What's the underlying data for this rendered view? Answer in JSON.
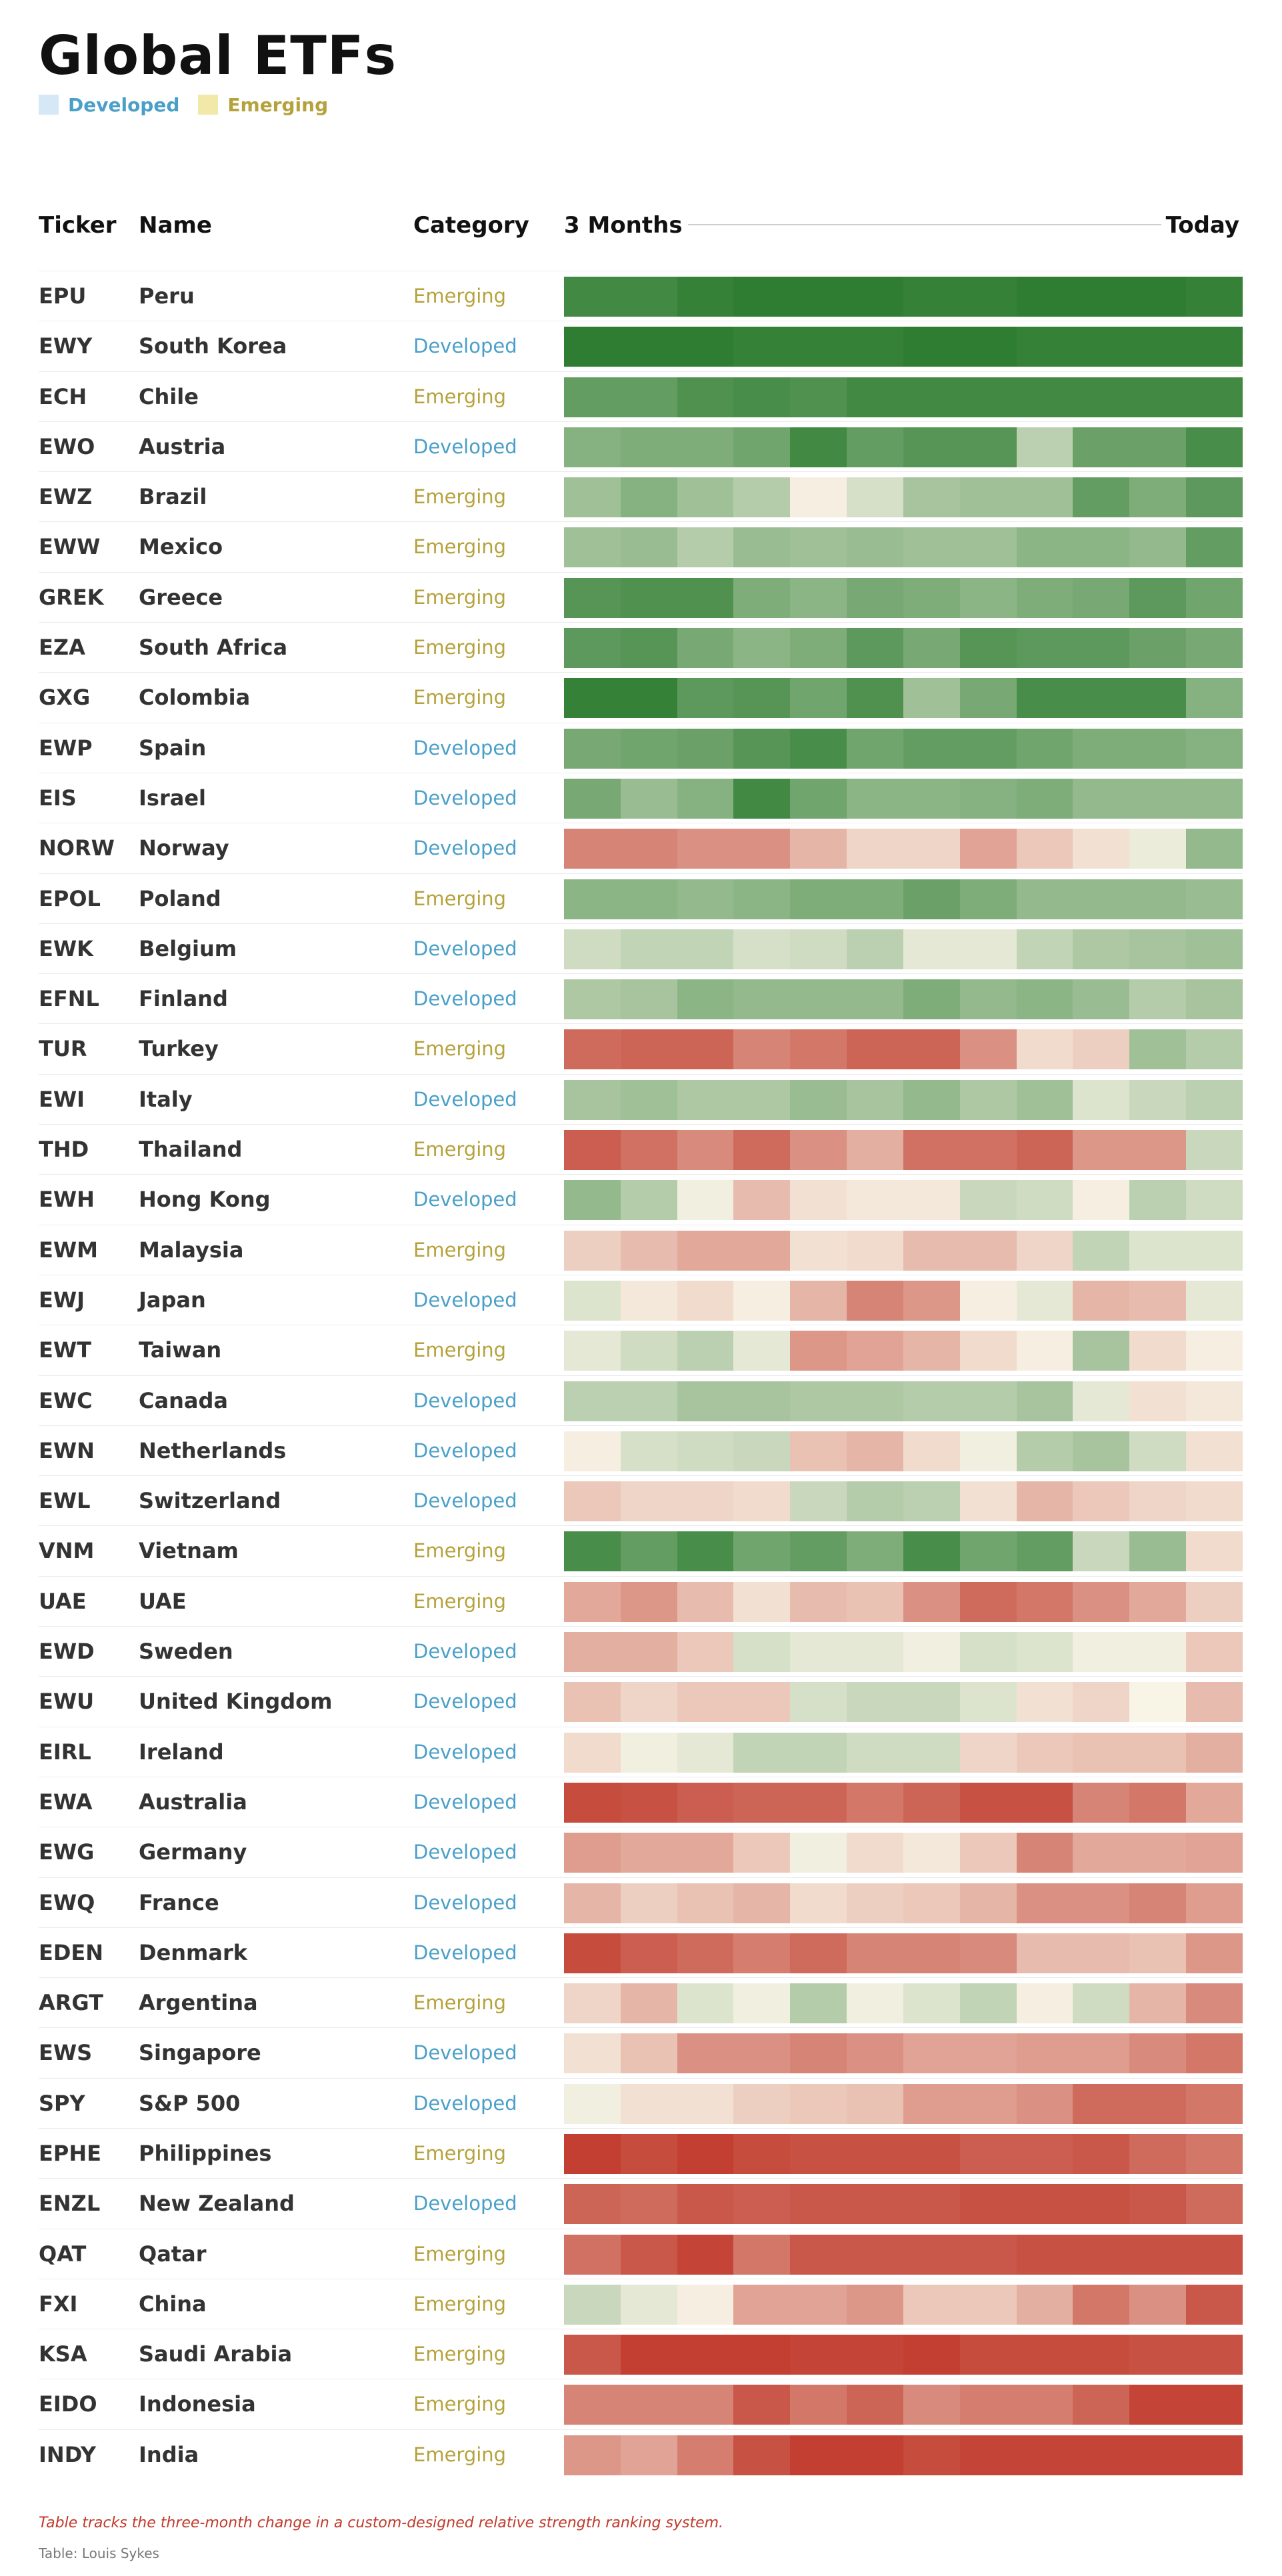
{
  "title": "Global ETFs",
  "legend": [
    {
      "label": "Developed",
      "color": "#4a9fc8",
      "swatch": "#d6e8f6"
    },
    {
      "label": "Emerging",
      "color": "#b5a23c",
      "swatch": "#f2e9a9"
    }
  ],
  "columns": {
    "ticker": "Ticker",
    "name": "Name",
    "category": "Category",
    "start": "3 Months",
    "end": "Today"
  },
  "category_colors": {
    "Developed": "#4a9fc8",
    "Emerging": "#b5a23c"
  },
  "chart_data": {
    "type": "heatmap",
    "title": "Global ETFs",
    "xlabel_start": "3 Months",
    "xlabel_end": "Today",
    "scale": {
      "min": -3,
      "max": 3,
      "negative_color": "#c0392b",
      "neutral_color": "#f8f4e6",
      "positive_color": "#2e7d32"
    },
    "rows": [
      {
        "ticker": "EPU",
        "name": "Peru",
        "category": "Emerging",
        "values": [
          2.7,
          2.7,
          2.9,
          3.0,
          3.0,
          3.0,
          2.9,
          2.9,
          3.0,
          3.0,
          3.0,
          2.9
        ]
      },
      {
        "ticker": "EWY",
        "name": "South Korea",
        "category": "Developed",
        "values": [
          3.0,
          3.0,
          3.0,
          2.9,
          2.9,
          2.9,
          3.0,
          3.0,
          2.9,
          2.9,
          2.9,
          2.9
        ]
      },
      {
        "ticker": "ECH",
        "name": "Chile",
        "category": "Emerging",
        "values": [
          2.2,
          2.2,
          2.5,
          2.6,
          2.5,
          2.7,
          2.7,
          2.7,
          2.7,
          2.7,
          2.7,
          2.7
        ]
      },
      {
        "ticker": "EWO",
        "name": "Austria",
        "category": "Developed",
        "values": [
          1.7,
          1.8,
          1.8,
          2.0,
          2.7,
          2.2,
          2.4,
          2.4,
          0.9,
          2.1,
          2.1,
          2.6
        ]
      },
      {
        "ticker": "EWZ",
        "name": "Brazil",
        "category": "Emerging",
        "values": [
          1.3,
          1.7,
          1.3,
          1.0,
          -0.1,
          0.5,
          1.2,
          1.3,
          1.3,
          2.2,
          1.8,
          2.3
        ]
      },
      {
        "ticker": "EWW",
        "name": "Mexico",
        "category": "Emerging",
        "values": [
          1.3,
          1.4,
          1.0,
          1.4,
          1.3,
          1.4,
          1.3,
          1.3,
          1.6,
          1.6,
          1.5,
          2.2
        ]
      },
      {
        "ticker": "GREK",
        "name": "Greece",
        "category": "Emerging",
        "values": [
          2.4,
          2.5,
          2.5,
          1.8,
          1.6,
          1.9,
          1.8,
          1.6,
          1.8,
          1.9,
          2.3,
          2.0
        ]
      },
      {
        "ticker": "EZA",
        "name": "South Africa",
        "category": "Emerging",
        "values": [
          2.3,
          2.4,
          1.9,
          1.6,
          1.8,
          2.3,
          1.9,
          2.4,
          2.3,
          2.3,
          2.1,
          1.9
        ]
      },
      {
        "ticker": "GXG",
        "name": "Colombia",
        "category": "Emerging",
        "values": [
          2.9,
          2.9,
          2.3,
          2.4,
          2.0,
          2.5,
          1.3,
          1.9,
          2.6,
          2.6,
          2.6,
          1.7
        ]
      },
      {
        "ticker": "EWP",
        "name": "Spain",
        "category": "Developed",
        "values": [
          1.9,
          2.0,
          2.1,
          2.4,
          2.6,
          2.0,
          2.2,
          2.2,
          2.0,
          1.8,
          1.8,
          1.7
        ]
      },
      {
        "ticker": "EIS",
        "name": "Israel",
        "category": "Developed",
        "values": [
          1.9,
          1.4,
          1.7,
          2.7,
          2.0,
          1.6,
          1.6,
          1.7,
          1.8,
          1.5,
          1.5,
          1.5
        ]
      },
      {
        "ticker": "NORW",
        "name": "Norway",
        "category": "Developed",
        "values": [
          -1.8,
          -1.8,
          -1.6,
          -1.6,
          -1.0,
          -0.5,
          -0.5,
          -1.3,
          -0.7,
          -0.3,
          0.2,
          1.5
        ]
      },
      {
        "ticker": "EPOL",
        "name": "Poland",
        "category": "Emerging",
        "values": [
          1.6,
          1.6,
          1.5,
          1.6,
          1.8,
          1.8,
          2.1,
          1.8,
          1.5,
          1.5,
          1.5,
          1.4
        ]
      },
      {
        "ticker": "EWK",
        "name": "Belgium",
        "category": "Developed",
        "values": [
          0.6,
          0.8,
          0.8,
          0.5,
          0.6,
          0.9,
          0.3,
          0.3,
          0.8,
          1.1,
          1.2,
          1.3
        ]
      },
      {
        "ticker": "EFNL",
        "name": "Finland",
        "category": "Developed",
        "values": [
          1.1,
          1.2,
          1.6,
          1.5,
          1.5,
          1.5,
          1.8,
          1.5,
          1.6,
          1.4,
          1.0,
          1.2
        ]
      },
      {
        "ticker": "TUR",
        "name": "Turkey",
        "category": "Emerging",
        "values": [
          -2.2,
          -2.3,
          -2.3,
          -1.8,
          -2.0,
          -2.3,
          -2.3,
          -1.6,
          -0.4,
          -0.6,
          1.3,
          1.0
        ]
      },
      {
        "ticker": "EWI",
        "name": "Italy",
        "category": "Developed",
        "values": [
          1.2,
          1.3,
          1.1,
          1.1,
          1.4,
          1.2,
          1.5,
          1.1,
          1.3,
          0.4,
          0.7,
          0.9
        ]
      },
      {
        "ticker": "THD",
        "name": "Thailand",
        "category": "Emerging",
        "values": [
          -2.4,
          -2.1,
          -1.7,
          -2.2,
          -1.6,
          -1.1,
          -2.1,
          -2.1,
          -2.3,
          -1.5,
          -1.5,
          0.7
        ]
      },
      {
        "ticker": "EWH",
        "name": "Hong Kong",
        "category": "Developed",
        "values": [
          1.5,
          1.0,
          0.1,
          -0.9,
          -0.3,
          -0.2,
          -0.2,
          0.7,
          0.6,
          -0.1,
          0.9,
          0.6
        ]
      },
      {
        "ticker": "EWM",
        "name": "Malaysia",
        "category": "Emerging",
        "values": [
          -0.6,
          -0.9,
          -1.2,
          -1.2,
          -0.3,
          -0.4,
          -0.9,
          -0.9,
          -0.5,
          0.8,
          0.4,
          0.4
        ]
      },
      {
        "ticker": "EWJ",
        "name": "Japan",
        "category": "Developed",
        "values": [
          0.4,
          -0.2,
          -0.4,
          -0.1,
          -1.0,
          -1.8,
          -1.5,
          -0.1,
          0.3,
          -1.0,
          -0.9,
          0.3
        ]
      },
      {
        "ticker": "EWT",
        "name": "Taiwan",
        "category": "Emerging",
        "values": [
          0.3,
          0.6,
          0.9,
          0.3,
          -1.5,
          -1.3,
          -1.0,
          -0.4,
          -0.1,
          1.2,
          -0.4,
          -0.1
        ]
      },
      {
        "ticker": "EWC",
        "name": "Canada",
        "category": "Developed",
        "values": [
          0.9,
          0.9,
          1.2,
          1.2,
          1.1,
          1.1,
          1.0,
          1.0,
          1.2,
          0.3,
          -0.3,
          -0.2
        ]
      },
      {
        "ticker": "EWN",
        "name": "Netherlands",
        "category": "Developed",
        "values": [
          -0.1,
          0.5,
          0.6,
          0.7,
          -0.8,
          -1.0,
          -0.4,
          0.1,
          1.0,
          1.2,
          0.6,
          -0.3
        ]
      },
      {
        "ticker": "EWL",
        "name": "Switzerland",
        "category": "Developed",
        "values": [
          -0.7,
          -0.5,
          -0.5,
          -0.4,
          0.7,
          1.0,
          0.9,
          -0.3,
          -1.0,
          -0.7,
          -0.5,
          -0.4
        ]
      },
      {
        "ticker": "VNM",
        "name": "Vietnam",
        "category": "Emerging",
        "values": [
          2.6,
          2.2,
          2.6,
          2.0,
          2.2,
          1.8,
          2.6,
          2.0,
          2.2,
          0.7,
          1.4,
          -0.4
        ]
      },
      {
        "ticker": "UAE",
        "name": "UAE",
        "category": "Emerging",
        "values": [
          -1.2,
          -1.5,
          -0.9,
          -0.3,
          -0.9,
          -0.8,
          -1.6,
          -2.2,
          -2.0,
          -1.6,
          -1.2,
          -0.6
        ]
      },
      {
        "ticker": "EWD",
        "name": "Sweden",
        "category": "Developed",
        "values": [
          -1.1,
          -1.1,
          -0.7,
          0.5,
          0.3,
          0.3,
          0.1,
          0.5,
          0.4,
          0.1,
          0.1,
          -0.7
        ]
      },
      {
        "ticker": "EWU",
        "name": "United Kingdom",
        "category": "Developed",
        "values": [
          -0.8,
          -0.5,
          -0.7,
          -0.7,
          0.5,
          0.7,
          0.7,
          0.4,
          -0.3,
          -0.5,
          0.0,
          -0.9
        ]
      },
      {
        "ticker": "EIRL",
        "name": "Ireland",
        "category": "Developed",
        "values": [
          -0.4,
          0.1,
          0.3,
          0.8,
          0.8,
          0.6,
          0.6,
          -0.5,
          -0.7,
          -0.8,
          -0.8,
          -1.1
        ]
      },
      {
        "ticker": "EWA",
        "name": "Australia",
        "category": "Developed",
        "values": [
          -2.7,
          -2.6,
          -2.4,
          -2.3,
          -2.3,
          -2.0,
          -2.3,
          -2.6,
          -2.6,
          -1.8,
          -2.0,
          -1.2
        ]
      },
      {
        "ticker": "EWG",
        "name": "Germany",
        "category": "Developed",
        "values": [
          -1.4,
          -1.2,
          -1.2,
          -0.7,
          0.1,
          -0.4,
          -0.2,
          -0.7,
          -1.8,
          -1.2,
          -1.2,
          -1.3
        ]
      },
      {
        "ticker": "EWQ",
        "name": "France",
        "category": "Developed",
        "values": [
          -1.0,
          -0.6,
          -0.8,
          -1.0,
          -0.4,
          -0.6,
          -0.7,
          -1.0,
          -1.6,
          -1.6,
          -1.8,
          -1.4
        ]
      },
      {
        "ticker": "EDEN",
        "name": "Denmark",
        "category": "Developed",
        "values": [
          -2.7,
          -2.4,
          -2.2,
          -1.9,
          -2.2,
          -1.8,
          -1.8,
          -1.7,
          -0.9,
          -0.9,
          -0.8,
          -1.5
        ]
      },
      {
        "ticker": "ARGT",
        "name": "Argentina",
        "category": "Emerging",
        "values": [
          -0.5,
          -1.0,
          0.4,
          0.1,
          1.0,
          0.1,
          0.4,
          0.8,
          -0.1,
          0.6,
          -1.0,
          -1.7
        ]
      },
      {
        "ticker": "EWS",
        "name": "Singapore",
        "category": "Developed",
        "values": [
          -0.3,
          -0.8,
          -1.6,
          -1.6,
          -1.8,
          -1.6,
          -1.3,
          -1.3,
          -1.4,
          -1.4,
          -1.7,
          -2.0
        ]
      },
      {
        "ticker": "SPY",
        "name": "S&P 500",
        "category": "Developed",
        "values": [
          0.1,
          -0.3,
          -0.3,
          -0.6,
          -0.7,
          -0.8,
          -1.4,
          -1.4,
          -1.6,
          -2.2,
          -2.2,
          -2.0
        ]
      },
      {
        "ticker": "EPHE",
        "name": "Philippines",
        "category": "Emerging",
        "values": [
          -2.9,
          -2.7,
          -2.9,
          -2.7,
          -2.6,
          -2.6,
          -2.6,
          -2.4,
          -2.4,
          -2.5,
          -2.2,
          -2.0
        ]
      },
      {
        "ticker": "ENZL",
        "name": "New Zealand",
        "category": "Developed",
        "values": [
          -2.3,
          -2.2,
          -2.5,
          -2.4,
          -2.5,
          -2.5,
          -2.5,
          -2.6,
          -2.6,
          -2.6,
          -2.5,
          -2.2
        ]
      },
      {
        "ticker": "QAT",
        "name": "Qatar",
        "category": "Emerging",
        "values": [
          -2.1,
          -2.5,
          -2.8,
          -2.0,
          -2.5,
          -2.5,
          -2.5,
          -2.5,
          -2.6,
          -2.6,
          -2.6,
          -2.6
        ]
      },
      {
        "ticker": "FXI",
        "name": "China",
        "category": "Emerging",
        "values": [
          0.7,
          0.3,
          -0.1,
          -1.3,
          -1.3,
          -1.5,
          -0.7,
          -0.7,
          -1.1,
          -2.0,
          -1.6,
          -2.5
        ]
      },
      {
        "ticker": "KSA",
        "name": "Saudi Arabia",
        "category": "Emerging",
        "values": [
          -2.5,
          -2.9,
          -2.9,
          -2.9,
          -2.8,
          -2.8,
          -2.9,
          -2.7,
          -2.7,
          -2.7,
          -2.6,
          -2.6
        ]
      },
      {
        "ticker": "EIDO",
        "name": "Indonesia",
        "category": "Emerging",
        "values": [
          -1.8,
          -1.8,
          -1.8,
          -2.5,
          -2.0,
          -2.3,
          -1.7,
          -1.9,
          -1.9,
          -2.3,
          -2.8,
          -2.8
        ]
      },
      {
        "ticker": "INDY",
        "name": "India",
        "category": "Emerging",
        "values": [
          -1.5,
          -1.3,
          -1.9,
          -2.6,
          -2.9,
          -2.9,
          -2.7,
          -2.8,
          -2.8,
          -2.8,
          -2.8,
          -2.8
        ]
      }
    ]
  },
  "footnote": "Table tracks the three-month change in a custom-designed relative strength ranking system.",
  "source": "Table: Louis Sykes"
}
